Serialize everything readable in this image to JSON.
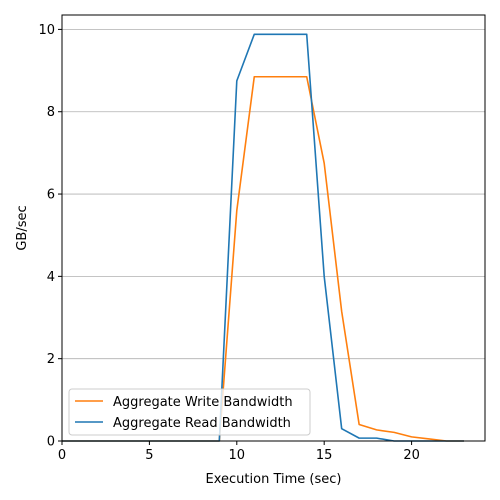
{
  "chart_data": {
    "type": "line",
    "title": "",
    "xlabel": "Execution Time (sec)",
    "ylabel": "GB/sec",
    "xlim": [
      0,
      24.2
    ],
    "ylim": [
      0,
      10.35
    ],
    "xticks": [
      0,
      5,
      10,
      15,
      20
    ],
    "yticks": [
      0,
      2,
      4,
      6,
      8,
      10
    ],
    "grid": {
      "y": true,
      "x": false
    },
    "legend_position": "lower-left",
    "series": [
      {
        "name": "Aggregate Write Bandwidth",
        "color": "#ff7f0e",
        "x": [
          0,
          1,
          2,
          3,
          4,
          5,
          6,
          7,
          8,
          9,
          10,
          11,
          12,
          13,
          14,
          15,
          16,
          17,
          18,
          19,
          20,
          21,
          22,
          23
        ],
        "y": [
          0,
          0,
          0,
          0,
          0,
          0,
          0,
          0,
          0,
          0,
          5.6,
          8.85,
          8.85,
          8.85,
          8.85,
          6.75,
          3.15,
          0.4,
          0.27,
          0.21,
          0.1,
          0.05,
          0,
          0
        ]
      },
      {
        "name": "Aggregate Read Bandwidth",
        "color": "#1f77b4",
        "x": [
          0,
          1,
          2,
          3,
          4,
          5,
          6,
          7,
          8,
          9,
          10,
          11,
          12,
          13,
          14,
          15,
          16,
          17,
          18,
          19,
          20,
          21,
          22,
          23
        ],
        "y": [
          0,
          0,
          0,
          0,
          0,
          0,
          0,
          0,
          0,
          0,
          8.75,
          9.88,
          9.88,
          9.88,
          9.88,
          4.0,
          0.3,
          0.07,
          0.07,
          0,
          0,
          0,
          0,
          0
        ]
      }
    ]
  }
}
